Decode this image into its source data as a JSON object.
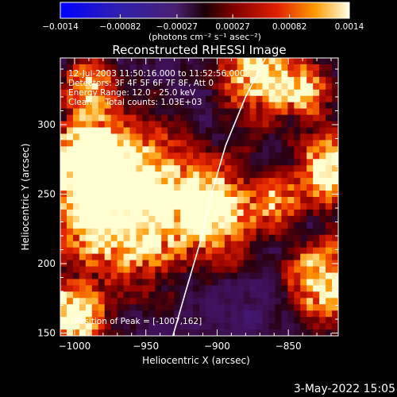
{
  "chart_data": {
    "type": "heatmap",
    "title": "Reconstructed RHESSI Image",
    "xlabel": "Heliocentric X (arcsec)",
    "ylabel": "Heliocentric Y (arcsec)",
    "xlim": [
      -1010,
      -815
    ],
    "ylim": [
      148,
      348
    ],
    "x_ticks": [
      -1000,
      -950,
      -900,
      -850
    ],
    "y_ticks": [
      150,
      200,
      250,
      300
    ],
    "x_tick_labels": [
      "−1000",
      "−950",
      "−900",
      "−850"
    ],
    "y_tick_labels": [
      "150",
      "200",
      "250",
      "300"
    ],
    "colorbar": {
      "range": [
        -0.0014,
        0.0014
      ],
      "ticks": [
        -0.0014,
        -0.00082,
        -0.00027,
        0.00027,
        0.00082,
        0.0014
      ],
      "tick_labels": [
        "−0.0014",
        "−0.00082",
        "−0.00027",
        "0.00027",
        "0.00082",
        "0.0014"
      ],
      "unit_label": "(photons cm⁻² s⁻¹ asec⁻²)"
    },
    "annotations": [
      "12-Jul-2003 11:50:16.000 to 11:52:56.000",
      "Detectors: 3F 4F 5F 6F 7F 8F, Att 0",
      "Energy Range: 12.0 - 25.0 keV",
      "Clean     Total counts: 1.03E+03"
    ],
    "peak_label": "Position of Peak = [-1007,162]",
    "peak_position": [
      -1007,
      162
    ],
    "limb_curve": [
      [
        -931,
        148
      ],
      [
        -922,
        180
      ],
      [
        -912,
        215
      ],
      [
        -904,
        250
      ],
      [
        -894,
        285
      ],
      [
        -880,
        320
      ],
      [
        -866,
        348
      ]
    ],
    "grid": false
  },
  "footer": {
    "date": "3-May-2022 15:05"
  }
}
